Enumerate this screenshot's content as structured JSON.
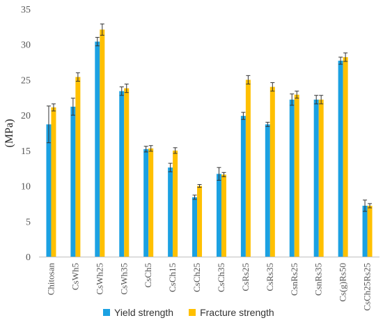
{
  "chart_data": {
    "type": "bar",
    "title": "",
    "xlabel": "",
    "ylabel": "(MPa)",
    "ylim": [
      0,
      35
    ],
    "yticks": [
      0,
      5,
      10,
      15,
      20,
      25,
      30,
      35
    ],
    "grid": false,
    "legend_position": "bottom",
    "categories": [
      "Chitosan",
      "CsWh5",
      "CsWh25",
      "CsWh35",
      "CsCh5",
      "CsCh15",
      "CsCh25",
      "CsCh35",
      "CsRs25",
      "CsRs35",
      "CsnRs25",
      "CsnRs35",
      "Cs(g)Rs50",
      "CsCh25Rs25"
    ],
    "series": [
      {
        "name": "Yield strength",
        "color": "#1BA1E2",
        "values": [
          18.7,
          21.2,
          30.4,
          23.4,
          15.2,
          12.6,
          8.4,
          11.7,
          19.9,
          18.7,
          22.2,
          22.2,
          27.7,
          7.2
        ],
        "errors": [
          2.6,
          1.2,
          0.6,
          0.6,
          0.4,
          0.6,
          0.3,
          0.9,
          0.5,
          0.3,
          0.8,
          0.6,
          0.5,
          0.8
        ]
      },
      {
        "name": "Fracture strength",
        "color": "#FFC000",
        "values": [
          21.1,
          25.4,
          32.1,
          23.8,
          15.3,
          15.0,
          10.0,
          11.6,
          25.0,
          24.0,
          22.9,
          22.2,
          28.2,
          7.2
        ],
        "errors": [
          0.5,
          0.6,
          0.8,
          0.6,
          0.4,
          0.4,
          0.2,
          0.3,
          0.6,
          0.6,
          0.5,
          0.6,
          0.6,
          0.3
        ]
      }
    ]
  }
}
